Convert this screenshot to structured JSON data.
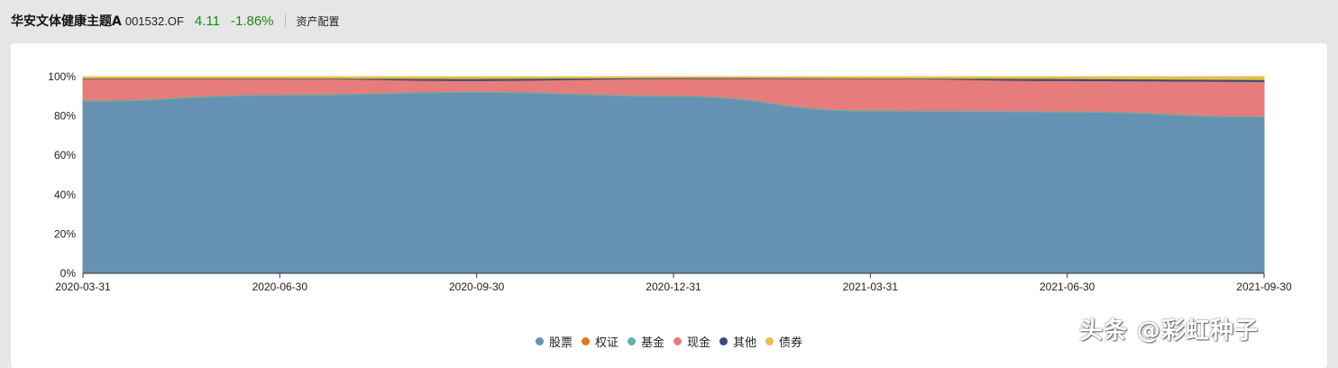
{
  "header": {
    "fund_name": "华安文体健康主题A",
    "fund_code": "001532.OF",
    "nav": "4.11",
    "change": "-1.86%",
    "section": "资产配置"
  },
  "watermark": "头条 @彩虹种子",
  "colors": {
    "stock": "#6592b3",
    "warrant": "#e8741f",
    "fund": "#5fb3a8",
    "cash": "#e67c7c",
    "other": "#3b4a7a",
    "bond": "#e4c04a",
    "change_text": "#1c8a1c"
  },
  "chart_data": {
    "type": "area",
    "stacked": true,
    "x": [
      "2020-03-31",
      "2020-06-30",
      "2020-09-30",
      "2020-12-31",
      "2021-03-31",
      "2021-06-30",
      "2021-09-30"
    ],
    "y_ticks": [
      "0%",
      "20%",
      "40%",
      "60%",
      "80%",
      "100%"
    ],
    "ylim": [
      0,
      100
    ],
    "series": [
      {
        "name": "股票",
        "key": "stock",
        "values": [
          87.5,
          90.5,
          92.0,
          90.0,
          82.5,
          82.0,
          79.5
        ]
      },
      {
        "name": "权证",
        "key": "warrant",
        "values": [
          0,
          0,
          0,
          0,
          0,
          0,
          0
        ]
      },
      {
        "name": "基金",
        "key": "fund",
        "values": [
          0.5,
          0.5,
          0.5,
          0.5,
          0.5,
          0.5,
          0.5
        ]
      },
      {
        "name": "现金",
        "key": "cash",
        "values": [
          11.0,
          8.0,
          5.5,
          8.5,
          16.0,
          15.5,
          17.5
        ]
      },
      {
        "name": "其他",
        "key": "other",
        "values": [
          0.3,
          0.3,
          1.0,
          0.5,
          0.3,
          1.0,
          1.0
        ]
      },
      {
        "name": "债券",
        "key": "bond",
        "values": [
          0.7,
          0.7,
          1.0,
          0.5,
          0.7,
          1.0,
          1.5
        ]
      }
    ]
  }
}
